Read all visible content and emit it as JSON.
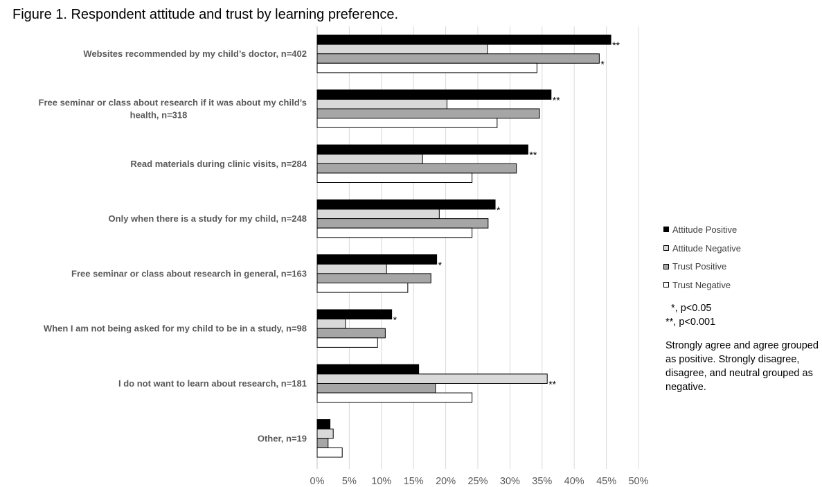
{
  "title": "Figure 1. Respondent attitude and trust by learning preference.",
  "chart_data": {
    "type": "bar",
    "orientation": "horizontal",
    "categories": [
      [
        "Websites recommended by my child’s doctor, n=402"
      ],
      [
        "Free seminar or class about research if it was about my child’s",
        "health, n=318"
      ],
      [
        "Read materials during clinic visits, n=284"
      ],
      [
        "Only when there is a study for my child, n=248"
      ],
      [
        "Free seminar or class about research in general, n=163"
      ],
      [
        "When I am not being asked for my child to be in a study, n=98"
      ],
      [
        "I do not want to learn about research, n=181"
      ],
      [
        "Other, n=19"
      ]
    ],
    "series": [
      {
        "name": "Attitude Positive",
        "color": "#000000",
        "values": [
          45.7,
          36.4,
          32.8,
          27.7,
          18.6,
          11.6,
          15.8,
          2.0
        ],
        "annotations": [
          "**",
          "**",
          "**",
          "*",
          "*",
          "*",
          "",
          ""
        ]
      },
      {
        "name": "Attitude Negative",
        "color": "#d9d9d9",
        "values": [
          26.5,
          20.2,
          16.4,
          19.0,
          10.8,
          4.4,
          35.8,
          2.5
        ],
        "annotations": [
          "",
          "",
          "",
          "",
          "",
          "",
          "**",
          ""
        ]
      },
      {
        "name": "Trust Positive",
        "color": "#a6a6a6",
        "values": [
          43.9,
          34.6,
          31.0,
          26.6,
          17.7,
          10.6,
          18.4,
          1.7
        ],
        "annotations": [
          "*",
          "",
          "",
          "",
          "",
          "",
          "",
          ""
        ]
      },
      {
        "name": "Trust Negative",
        "color": "#ffffff",
        "values": [
          34.2,
          28.0,
          24.1,
          24.1,
          14.1,
          9.4,
          24.1,
          3.9
        ],
        "annotations": [
          "",
          "",
          "",
          "",
          "",
          "",
          "",
          ""
        ]
      }
    ],
    "xlim": [
      0,
      50
    ],
    "xticks": [
      0,
      5,
      10,
      15,
      20,
      25,
      30,
      35,
      40,
      45,
      50
    ],
    "xtick_suffix": "%",
    "grid": "vertical",
    "legend_position": "right"
  },
  "notes": {
    "sig1": "*, p<0.05",
    "sig2": "**, p<0.001",
    "description": "Strongly agree and agree grouped as positive. Strongly disagree, disagree, and neutral grouped as negative."
  }
}
